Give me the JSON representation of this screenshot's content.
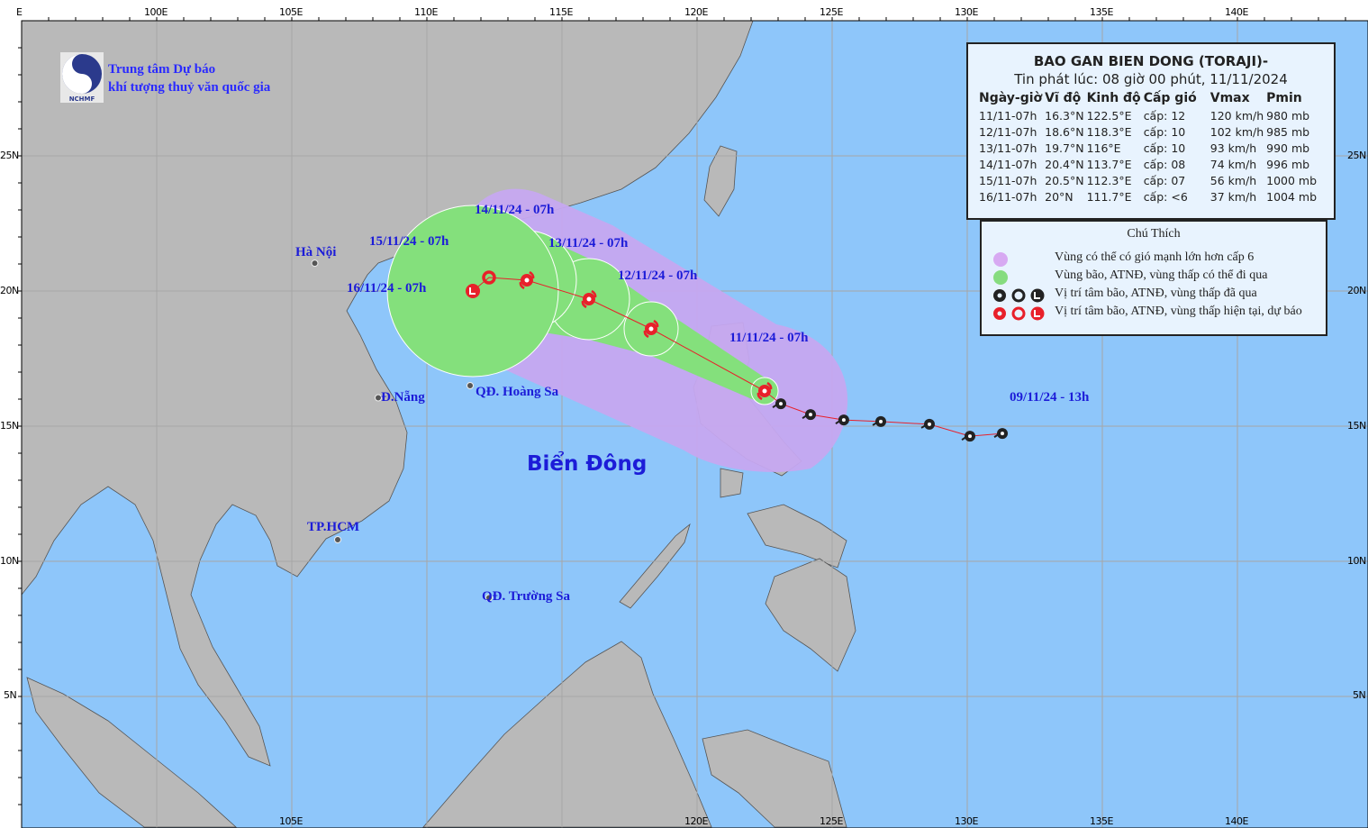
{
  "logo": {
    "text": "NCHMF",
    "org_line1": "Trung tâm Dự báo",
    "org_line2": "khí tượng thuỷ văn quốc gia"
  },
  "axes": {
    "top_ticks": [
      "100E",
      "105E",
      "110E",
      "115E",
      "120E",
      "125E",
      "130E",
      "135E",
      "140E"
    ],
    "bottom_ticks": [
      "105E",
      "120E",
      "125E",
      "130E",
      "135E",
      "140E"
    ],
    "right_ticks": [
      "25N",
      "20N",
      "15N",
      "10N",
      "5N"
    ],
    "left_ticks": [
      "25N",
      "20N",
      "15N",
      "10N",
      "5N"
    ]
  },
  "info": {
    "title": "BAO GAN BIEN DONG (TORAJI)-",
    "issued": "Tin phát lúc: 08 giờ 00 phút, 11/11/2024",
    "headers": [
      "Ngày-giờ",
      "Vĩ độ",
      "Kinh độ",
      "Cấp gió",
      "Vmax",
      "Pmin"
    ],
    "rows": [
      [
        "11/11-07h",
        "16.3°N",
        "122.5°E",
        "cấp: 12",
        "120 km/h",
        "980 mb"
      ],
      [
        "12/11-07h",
        "18.6°N",
        "118.3°E",
        "cấp: 10",
        "102 km/h",
        "985 mb"
      ],
      [
        "13/11-07h",
        "19.7°N",
        "116°E",
        "cấp: 10",
        "93 km/h",
        "990 mb"
      ],
      [
        "14/11-07h",
        "20.4°N",
        "113.7°E",
        "cấp: 08",
        "74 km/h",
        "996 mb"
      ],
      [
        "15/11-07h",
        "20.5°N",
        "112.3°E",
        "cấp: 07",
        "56 km/h",
        "1000 mb"
      ],
      [
        "16/11-07h",
        "20°N",
        "111.7°E",
        "cấp: <6",
        "37 km/h",
        "1004 mb"
      ]
    ]
  },
  "legend": {
    "title": "Chú Thích",
    "items": [
      {
        "label": "Vùng có thể có gió mạnh lớn hơn cấp 6",
        "color": "#d7a9f2"
      },
      {
        "label": "Vùng bão, ATNĐ, vùng thấp có thể đi qua",
        "color": "#86dc7f"
      },
      {
        "label": "Vị trí tâm bão, ATNĐ, vùng thấp đã qua",
        "color": "#222222"
      },
      {
        "label": "Vị trí tâm bão, ATNĐ, vùng thấp hiện tại, dự báo",
        "color": "#e8202a"
      }
    ]
  },
  "places": {
    "hanoi": "Hà Nội",
    "danang": "Đ.Nẵng",
    "hoangsa": "QĐ. Hoàng Sa",
    "hcm": "TP.HCM",
    "truongsa": "QĐ. Trường Sa",
    "sea": "Biển Đông"
  },
  "track_labels": {
    "d09": "09/11/24 - 13h",
    "d11": "11/11/24 - 07h",
    "d12": "12/11/24 - 07h",
    "d13": "13/11/24 - 07h",
    "d14": "14/11/24 - 07h",
    "d15": "15/11/24 - 07h",
    "d16": "16/11/24 - 07h"
  },
  "forecast_track": [
    [
      122.5,
      16.3
    ],
    [
      118.3,
      18.6
    ],
    [
      116,
      19.7
    ],
    [
      113.7,
      20.4
    ],
    [
      112.3,
      20.5
    ],
    [
      111.7,
      20
    ]
  ],
  "past_track": [
    [
      131.3,
      14.73
    ],
    [
      130.1,
      14.63
    ],
    [
      128.6,
      15.07
    ],
    [
      126.8,
      15.17
    ],
    [
      125.43,
      15.23
    ],
    [
      124.2,
      15.43
    ],
    [
      123.1,
      15.83
    ],
    [
      122.5,
      16.3
    ]
  ],
  "colors": {
    "sea": "#8ec6fa",
    "land": "#b9b9b9",
    "danger": "#c6a8f0",
    "track_zone": "#84e07c",
    "forecast": "#e8202a",
    "past": "#333333",
    "label": "#1c1cd8"
  }
}
